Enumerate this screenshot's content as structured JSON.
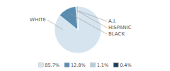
{
  "chart_data": {
    "type": "pie",
    "categories": [
      "WHITE",
      "BLACK",
      "HISPANIC",
      "A.I."
    ],
    "values": [
      85.7,
      12.8,
      1.1,
      0.4
    ],
    "value_labels": [
      "85.7%",
      "12.8%",
      "1.1%",
      "0.4%"
    ],
    "colors": [
      "#d6e4ef",
      "#5b8db0",
      "#b8cdd8",
      "#1e3f5a"
    ],
    "legend": "bottom"
  }
}
